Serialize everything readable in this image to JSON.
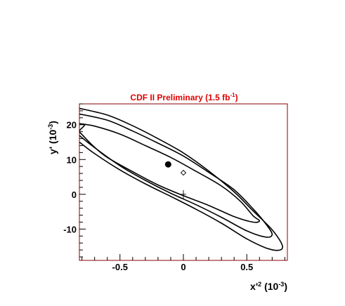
{
  "chart_data": {
    "type": "contour",
    "title": "CDF II Preliminary  (1.5 fb",
    "title_sup": "-1",
    "title_close": ")",
    "xlabel": "x'",
    "xlabel_sup": "2",
    "xlabel_unit": " (10",
    "xlabel_unit_sup": "-3",
    "xlabel_close": ")",
    "ylabel": "y' (10",
    "ylabel_sup": "-3",
    "ylabel_close": ")",
    "xlim": [
      -0.82,
      0.82
    ],
    "ylim": [
      -19,
      26
    ],
    "xticks": [
      "-0.5",
      "0",
      "0.5"
    ],
    "yticks": [
      "-10",
      "0",
      "10",
      "20"
    ],
    "title_color": "#e00000",
    "frame_color": "#8b0000",
    "best_fit": {
      "x": -0.12,
      "y": 8.6,
      "marker": "filled-circle"
    },
    "alt_point": {
      "x": 0.0,
      "y": 6.2,
      "marker": "open-diamond"
    },
    "no_mixing": {
      "x": 0.0,
      "y": 0.0,
      "marker": "cross"
    },
    "contours": [
      {
        "name": "inner",
        "points": [
          [
            -0.82,
            20.3
          ],
          [
            -0.7,
            19.6
          ],
          [
            -0.5,
            17.3
          ],
          [
            -0.3,
            14.0
          ],
          [
            -0.1,
            10.6
          ],
          [
            0.1,
            6.6
          ],
          [
            0.3,
            2.4
          ],
          [
            0.45,
            -2.0
          ],
          [
            0.55,
            -6.2
          ],
          [
            0.6,
            -7.6
          ],
          [
            0.55,
            -8.0
          ],
          [
            0.4,
            -6.4
          ],
          [
            0.2,
            -3.2
          ],
          [
            0.0,
            -0.4
          ],
          [
            -0.2,
            2.7
          ],
          [
            -0.4,
            6.5
          ],
          [
            -0.6,
            10.6
          ],
          [
            -0.7,
            13.5
          ],
          [
            -0.8,
            17.2
          ],
          [
            -0.82,
            18.2
          ],
          [
            -0.78,
            19.9
          ],
          [
            -0.82,
            20.3
          ]
        ]
      },
      {
        "name": "middle",
        "points": [
          [
            -0.82,
            23.1
          ],
          [
            -0.6,
            21.3
          ],
          [
            -0.4,
            18.2
          ],
          [
            -0.2,
            14.7
          ],
          [
            0.0,
            11.0
          ],
          [
            0.2,
            6.3
          ],
          [
            0.4,
            1.3
          ],
          [
            0.55,
            -4.2
          ],
          [
            0.65,
            -8.5
          ],
          [
            0.7,
            -11.5
          ],
          [
            0.65,
            -12.3
          ],
          [
            0.5,
            -10.5
          ],
          [
            0.3,
            -6.6
          ],
          [
            0.1,
            -3.0
          ],
          [
            -0.1,
            0.3
          ],
          [
            -0.3,
            4.0
          ],
          [
            -0.5,
            8.2
          ],
          [
            -0.7,
            13.4
          ],
          [
            -0.82,
            16.9
          ]
        ]
      },
      {
        "name": "outer",
        "points": [
          [
            -0.82,
            24.7
          ],
          [
            -0.6,
            22.8
          ],
          [
            -0.4,
            19.7
          ],
          [
            -0.2,
            16.0
          ],
          [
            0.0,
            11.9
          ],
          [
            0.2,
            6.7
          ],
          [
            0.4,
            0.7
          ],
          [
            0.55,
            -4.8
          ],
          [
            0.7,
            -10.2
          ],
          [
            0.78,
            -14.7
          ],
          [
            0.75,
            -16.1
          ],
          [
            0.65,
            -15.4
          ],
          [
            0.5,
            -12.8
          ],
          [
            0.3,
            -8.3
          ],
          [
            0.1,
            -4.3
          ],
          [
            -0.1,
            -0.6
          ],
          [
            -0.3,
            3.0
          ],
          [
            -0.5,
            7.0
          ],
          [
            -0.7,
            11.7
          ],
          [
            -0.82,
            15.0
          ]
        ]
      }
    ]
  }
}
